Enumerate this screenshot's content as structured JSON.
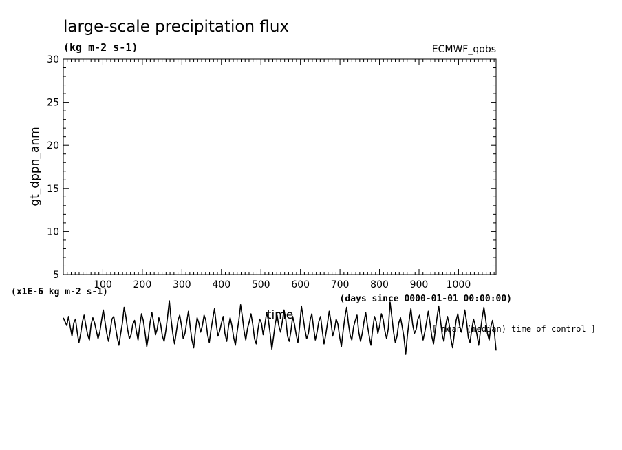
{
  "chart_data": {
    "type": "line",
    "title": "large-scale precipitation flux",
    "subtitle": "(kg m-2 s-1)",
    "source_label": "ECMWF_qobs",
    "ylabel": "gt_dppn_anm",
    "xlabel": "time",
    "x_units_note": "(days since 0000-01-01 00:00:00)",
    "y_scale_note": "(x1E-6 kg m-2 s-1)",
    "annotation": "[ mean (median) time of control ]",
    "ylim": [
      5,
      30
    ],
    "xlim": [
      0,
      1095
    ],
    "y_ticks": [
      "5",
      "10",
      "15",
      "20",
      "25",
      "30"
    ],
    "x_ticks": [
      "100",
      "200",
      "300",
      "400",
      "500",
      "600",
      "700",
      "800",
      "900",
      "1000"
    ],
    "grid": false,
    "series": [
      {
        "values": [
          0.8,
          0.5,
          0.2,
          0.9,
          0.1,
          -0.6,
          0.4,
          0.7,
          -0.3,
          -1.1,
          -0.4,
          0.5,
          1.0,
          0.2,
          -0.5,
          -0.9,
          0.3,
          0.8,
          0.4,
          -0.2,
          -0.8,
          -0.3,
          0.6,
          1.4,
          0.5,
          -0.4,
          -1.0,
          -0.2,
          0.7,
          0.9,
          0.1,
          -0.7,
          -1.3,
          -0.4,
          0.4,
          1.6,
          0.9,
          -0.1,
          -0.8,
          -0.5,
          0.3,
          0.6,
          -0.2,
          -0.9,
          0.2,
          1.1,
          0.6,
          -0.3,
          -1.4,
          -0.6,
          0.5,
          1.2,
          0.4,
          -0.5,
          -0.1,
          0.8,
          0.3,
          -0.6,
          -1.0,
          -0.2,
          0.9,
          2.1,
          0.7,
          -0.4,
          -1.2,
          -0.3,
          0.6,
          1.0,
          0.2,
          -0.8,
          -0.4,
          0.5,
          1.3,
          0.1,
          -0.9,
          -1.5,
          -0.2,
          0.8,
          0.4,
          -0.3,
          0.2,
          1.0,
          0.6,
          -0.5,
          -1.1,
          -0.1,
          0.7,
          1.5,
          0.3,
          -0.6,
          -0.2,
          0.4,
          0.9,
          -0.4,
          -1.0,
          0.1,
          0.8,
          0.2,
          -0.7,
          -1.3,
          -0.3,
          0.6,
          1.8,
          0.9,
          -0.2,
          -0.9,
          0.0,
          0.5,
          1.1,
          0.3,
          -0.8,
          -1.2,
          -0.1,
          0.7,
          0.4,
          -0.5,
          0.3,
          1.2,
          0.6,
          -0.4,
          -1.6,
          -0.6,
          0.4,
          1.0,
          0.2,
          -0.3,
          0.5,
          1.4,
          0.7,
          -0.6,
          -1.0,
          -0.2,
          0.9,
          0.3,
          -0.5,
          -1.1,
          0.2,
          1.7,
          0.8,
          -0.1,
          -0.8,
          -0.4,
          0.6,
          1.1,
          0.0,
          -0.9,
          -0.3,
          0.5,
          0.9,
          -0.2,
          -1.2,
          -0.5,
          0.4,
          1.3,
          0.5,
          -0.6,
          -0.1,
          0.7,
          0.3,
          -0.7,
          -1.4,
          -0.2,
          0.8,
          1.6,
          0.4,
          -0.5,
          -0.9,
          0.1,
          0.6,
          1.0,
          -0.3,
          -1.0,
          -0.4,
          0.5,
          1.2,
          0.2,
          -0.6,
          -1.3,
          -0.1,
          0.9,
          0.5,
          -0.4,
          0.2,
          1.1,
          0.7,
          -0.2,
          -0.8,
          0.0,
          2.0,
          0.9,
          -0.3,
          -1.1,
          -0.6,
          0.4,
          0.8,
          0.1,
          -0.7,
          -2.0,
          -0.5,
          0.6,
          1.5,
          0.3,
          -0.4,
          -0.1,
          0.7,
          1.0,
          -0.2,
          -0.9,
          -0.3,
          0.5,
          1.3,
          0.4,
          -0.6,
          -1.2,
          -0.2,
          0.8,
          1.7,
          0.6,
          -0.5,
          -1.0,
          0.2,
          0.9,
          0.3,
          -0.8,
          -1.5,
          -0.4,
          0.6,
          1.1,
          0.2,
          -0.3,
          0.4,
          1.4,
          0.5,
          -0.7,
          -1.1,
          -0.1,
          0.7,
          0.2,
          -0.5,
          -1.3,
          -0.2,
          0.8,
          1.6,
          0.7,
          -0.4,
          -0.9,
          0.1,
          0.6,
          -0.3,
          -1.7
        ]
      }
    ]
  }
}
